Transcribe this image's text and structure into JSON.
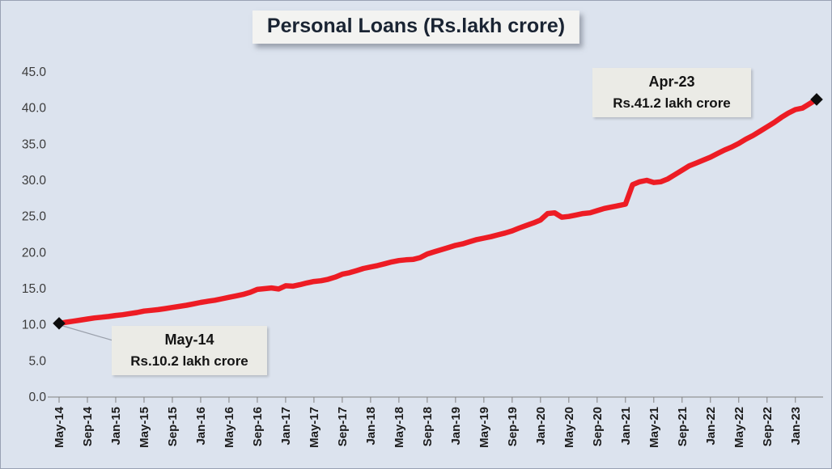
{
  "chart_data": {
    "type": "line",
    "title": "Personal Loans (Rs.lakh crore)",
    "series_name": "Personal Loans",
    "ylabel": "",
    "xlabel": "",
    "gridlines": false,
    "legend": "none",
    "background_color": "#dce3ee",
    "line_color": "#ED1C24",
    "marker_color": "#0d0d0d",
    "ylim": [
      0,
      45
    ],
    "y_ticks": [
      0,
      5,
      10,
      15,
      20,
      25,
      30,
      35,
      40,
      45
    ],
    "y_tick_labels": [
      "0.0",
      "5.0",
      "10.0",
      "15.0",
      "20.0",
      "25.0",
      "30.0",
      "35.0",
      "40.0",
      "45.0"
    ],
    "tick_every": 4,
    "x_tick_labels": [
      "May-14",
      "Sep-14",
      "Jan-15",
      "May-15",
      "Sep-15",
      "Jan-16",
      "May-16",
      "Sep-16",
      "Jan-17",
      "May-17",
      "Sep-17",
      "Jan-18",
      "May-18",
      "Sep-18",
      "Jan-19",
      "May-19",
      "Sep-19",
      "Jan-20",
      "May-20",
      "Sep-20",
      "Jan-21",
      "May-21",
      "Sep-21",
      "Jan-22",
      "May-22",
      "Sep-22",
      "Jan-23"
    ],
    "x_range_note": "monthly points May-2014 through Apr-2023",
    "values": [
      10.2,
      10.35,
      10.5,
      10.65,
      10.8,
      10.95,
      11.05,
      11.15,
      11.3,
      11.4,
      11.55,
      11.7,
      11.9,
      12.0,
      12.1,
      12.25,
      12.4,
      12.55,
      12.7,
      12.9,
      13.1,
      13.25,
      13.4,
      13.6,
      13.8,
      14.0,
      14.2,
      14.5,
      14.9,
      15.0,
      15.1,
      14.95,
      15.4,
      15.35,
      15.55,
      15.8,
      16.0,
      16.1,
      16.3,
      16.6,
      17.0,
      17.2,
      17.5,
      17.8,
      18.0,
      18.2,
      18.45,
      18.7,
      18.9,
      19.0,
      19.05,
      19.3,
      19.8,
      20.1,
      20.4,
      20.7,
      21.0,
      21.2,
      21.5,
      21.8,
      22.0,
      22.2,
      22.45,
      22.7,
      23.0,
      23.4,
      23.75,
      24.1,
      24.5,
      25.4,
      25.5,
      24.9,
      25.0,
      25.2,
      25.4,
      25.5,
      25.8,
      26.1,
      26.3,
      26.5,
      26.7,
      29.4,
      29.8,
      30.0,
      29.7,
      29.8,
      30.2,
      30.8,
      31.4,
      32.0,
      32.4,
      32.8,
      33.2,
      33.7,
      34.2,
      34.6,
      35.1,
      35.7,
      36.2,
      36.8,
      37.4,
      38.0,
      38.7,
      39.3,
      39.8,
      40.0,
      40.6,
      41.2
    ],
    "annotations": [
      {
        "line1": "May-14",
        "line2": "Rs.10.2 lakh crore",
        "point_index": 0,
        "value": 10.2
      },
      {
        "line1": "Apr-23",
        "line2": "Rs.41.2 lakh crore",
        "point_index": 107,
        "value": 41.2
      }
    ]
  }
}
